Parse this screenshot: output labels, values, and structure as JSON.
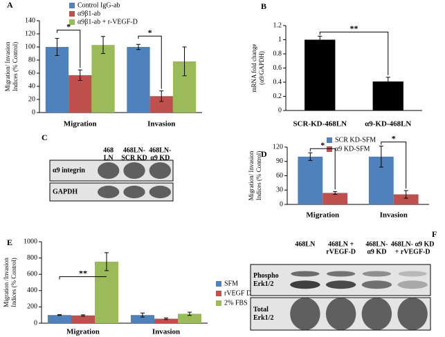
{
  "chart_data": [
    {
      "type": "bar",
      "panel": "A",
      "y_label": [
        "Migration/ Invasion",
        "Indices (% Control)"
      ],
      "categories": [
        "Migration",
        "Invasion"
      ],
      "series": [
        {
          "name": "Control IgG-ab",
          "color": "#4f81bd",
          "values": [
            100,
            100
          ],
          "errors": [
            13,
            4
          ]
        },
        {
          "name": "α9β1-ab",
          "color": "#c0504d",
          "values": [
            57,
            25
          ],
          "errors": [
            8,
            8
          ]
        },
        {
          "name": "α9β1-ab + r-VEGF-D",
          "color": "#9bbb59",
          "values": [
            103,
            78
          ],
          "errors": [
            13,
            22
          ]
        }
      ],
      "ylim": [
        0,
        140
      ],
      "yticks": [
        0,
        20,
        40,
        60,
        80,
        100,
        120,
        140
      ],
      "legend": "top",
      "annotations": [
        "*",
        "*"
      ]
    },
    {
      "type": "bar",
      "panel": "B",
      "y_label": [
        "mRNA fold change",
        "(α9/GAPDH)"
      ],
      "categories": [
        "SCR-KD-468LN",
        "α9-KD-468LN"
      ],
      "values": [
        1,
        0.41
      ],
      "errors": [
        0.05,
        0.06
      ],
      "color": "#000000",
      "ylim": [
        0,
        1.2
      ],
      "yticks": [
        0,
        0.2,
        0.4,
        0.6,
        0.8,
        1,
        1.2
      ],
      "annotations": [
        "**"
      ]
    },
    {
      "type": "bar",
      "panel": "D",
      "y_label": [
        "Migration/ Invasion",
        "Indices (% Control)"
      ],
      "categories": [
        "Migration",
        "Invasion"
      ],
      "series": [
        {
          "name": "SCR KD-SFM",
          "color": "#4f81bd",
          "values": [
            100,
            100
          ],
          "errors": [
            8,
            22
          ]
        },
        {
          "name": "α9 KD-SFM",
          "color": "#c0504d",
          "values": [
            24,
            21
          ],
          "errors": [
            3,
            8
          ]
        }
      ],
      "ylim": [
        0,
        120
      ],
      "yticks": [
        0,
        30,
        60,
        90,
        120
      ],
      "legend": "top",
      "annotations": [
        "*",
        "*"
      ]
    },
    {
      "type": "bar",
      "panel": "E",
      "y_label": [
        "Migration /Invasion",
        "Indices (% Control)"
      ],
      "categories": [
        "Migration",
        "Invasion"
      ],
      "series": [
        {
          "name": "SFM",
          "color": "#4f81bd",
          "values": [
            100,
            100
          ],
          "errors": [
            5,
            25
          ]
        },
        {
          "name": "rVEGF D",
          "color": "#c0504d",
          "values": [
            95,
            55
          ],
          "errors": [
            8,
            10
          ]
        },
        {
          "name": "2% FBS",
          "color": "#9bbb59",
          "values": [
            755,
            115
          ],
          "errors": [
            110,
            20
          ]
        }
      ],
      "ylim": [
        0,
        1000
      ],
      "yticks": [
        0,
        200,
        400,
        600,
        800,
        1000
      ],
      "legend": "right",
      "annotations": [
        "**"
      ]
    }
  ],
  "blots": [
    {
      "panel": "C",
      "columns": [
        [
          "468",
          "LN"
        ],
        [
          "468LN-",
          "SCR KD"
        ],
        [
          "468LN-",
          "α9 KD"
        ]
      ],
      "rows": [
        [
          "α9 integrin"
        ],
        [
          "GAPDH"
        ]
      ]
    },
    {
      "panel": "F",
      "columns": [
        [
          "468LN"
        ],
        [
          "468LN +",
          "rVEGF-D"
        ],
        [
          "468LN-",
          "α9 KD"
        ],
        [
          "468LN- α9 KD",
          "+ rVEGF-D"
        ]
      ],
      "rows": [
        [
          "Phospho",
          "Erk1/2"
        ],
        [
          "Total",
          "Erk1/2"
        ]
      ]
    }
  ]
}
